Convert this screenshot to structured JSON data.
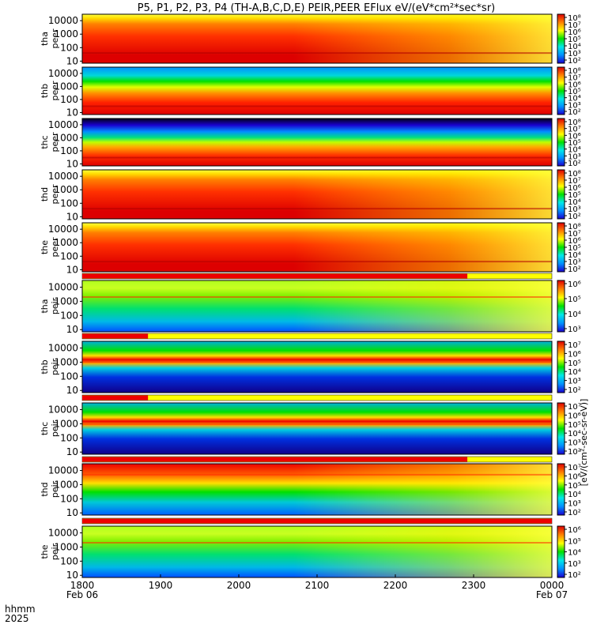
{
  "title": "P5, P1, P2, P3, P4 (TH-A,B,C,D,E) PEIR,PEER EFlux eV/(eV*cm²*sec*sr)",
  "colorbar_units": "[eV/(cm²-sec-sr-eV)]",
  "footer": {
    "line1": "hhmm",
    "line2": "2025",
    "ticks": [
      {
        "time": "1800",
        "date": "Feb 06"
      },
      {
        "time": "1900",
        "date": ""
      },
      {
        "time": "2000",
        "date": ""
      },
      {
        "time": "2100",
        "date": ""
      },
      {
        "time": "2200",
        "date": ""
      },
      {
        "time": "2300",
        "date": ""
      },
      {
        "time": "0000",
        "date": "Feb 07"
      }
    ]
  },
  "chart_data": {
    "type": "heatmap",
    "x_range": [
      "2025-02-06 18:00",
      "2025-02-07 00:00"
    ],
    "y_scale": "log",
    "y_range": [
      7,
      30000
    ],
    "y_ticks": [
      "10000",
      "1000",
      "100",
      "10"
    ],
    "colormap": [
      "#000000",
      "#1a00d0",
      "#0090ff",
      "#00e8e8",
      "#00e000",
      "#ffff00",
      "#ff8000",
      "#dd0000"
    ],
    "panels": [
      {
        "label1": "tha",
        "label2": "peer",
        "cbar_ticks": [
          "10⁸",
          "10⁷",
          "10⁶",
          "10⁵",
          "10⁴",
          "10³",
          "10²"
        ],
        "peak_energy": 40,
        "profile": "hot"
      },
      {
        "label1": "thb",
        "label2": "peer",
        "cbar_ticks": [
          "10⁸",
          "10⁷",
          "10⁶",
          "10⁵",
          "10⁴",
          "10³",
          "10²"
        ],
        "peak_energy": 30,
        "profile": "cool"
      },
      {
        "label1": "thc",
        "label2": "peer",
        "cbar_ticks": [
          "10⁸",
          "10⁷",
          "10⁶",
          "10⁵",
          "10⁴",
          "10³",
          "10²"
        ],
        "peak_energy": 30,
        "profile": "cold"
      },
      {
        "label1": "thd",
        "label2": "peer",
        "cbar_ticks": [
          "10⁸",
          "10⁷",
          "10⁶",
          "10⁵",
          "10⁴",
          "10³",
          "10²"
        ],
        "peak_energy": 40,
        "profile": "hot"
      },
      {
        "label1": "the",
        "label2": "peer",
        "cbar_ticks": [
          "10⁸",
          "10⁷",
          "10⁶",
          "10⁵",
          "10⁴",
          "10³",
          "10²"
        ],
        "peak_energy": 40,
        "profile": "hot"
      },
      {
        "label1": "tha",
        "label2": "peir",
        "cbar_ticks": [
          "10⁶",
          "10⁵",
          "10⁴",
          "10³"
        ],
        "peak_energy": 2000,
        "profile": "ion_green"
      },
      {
        "label1": "thb",
        "label2": "peir",
        "cbar_ticks": [
          "10⁷",
          "10⁶",
          "10⁵",
          "10⁴",
          "10³",
          "10²"
        ],
        "peak_energy": 1000,
        "profile": "ion_band"
      },
      {
        "label1": "thc",
        "label2": "peir",
        "cbar_ticks": [
          "10⁷",
          "10⁶",
          "10⁵",
          "10⁴",
          "10³",
          "10²"
        ],
        "peak_energy": 900,
        "profile": "ion_band"
      },
      {
        "label1": "thd",
        "label2": "peir",
        "cbar_ticks": [
          "10⁷",
          "10⁶",
          "10⁵",
          "10⁴",
          "10³",
          "10²"
        ],
        "peak_energy": 5000,
        "profile": "ion_hot"
      },
      {
        "label1": "the",
        "label2": "peir",
        "cbar_ticks": [
          "10⁶",
          "10⁵",
          "10⁴",
          "10³",
          "10²"
        ],
        "peak_energy": 2000,
        "profile": "ion_green"
      }
    ]
  }
}
